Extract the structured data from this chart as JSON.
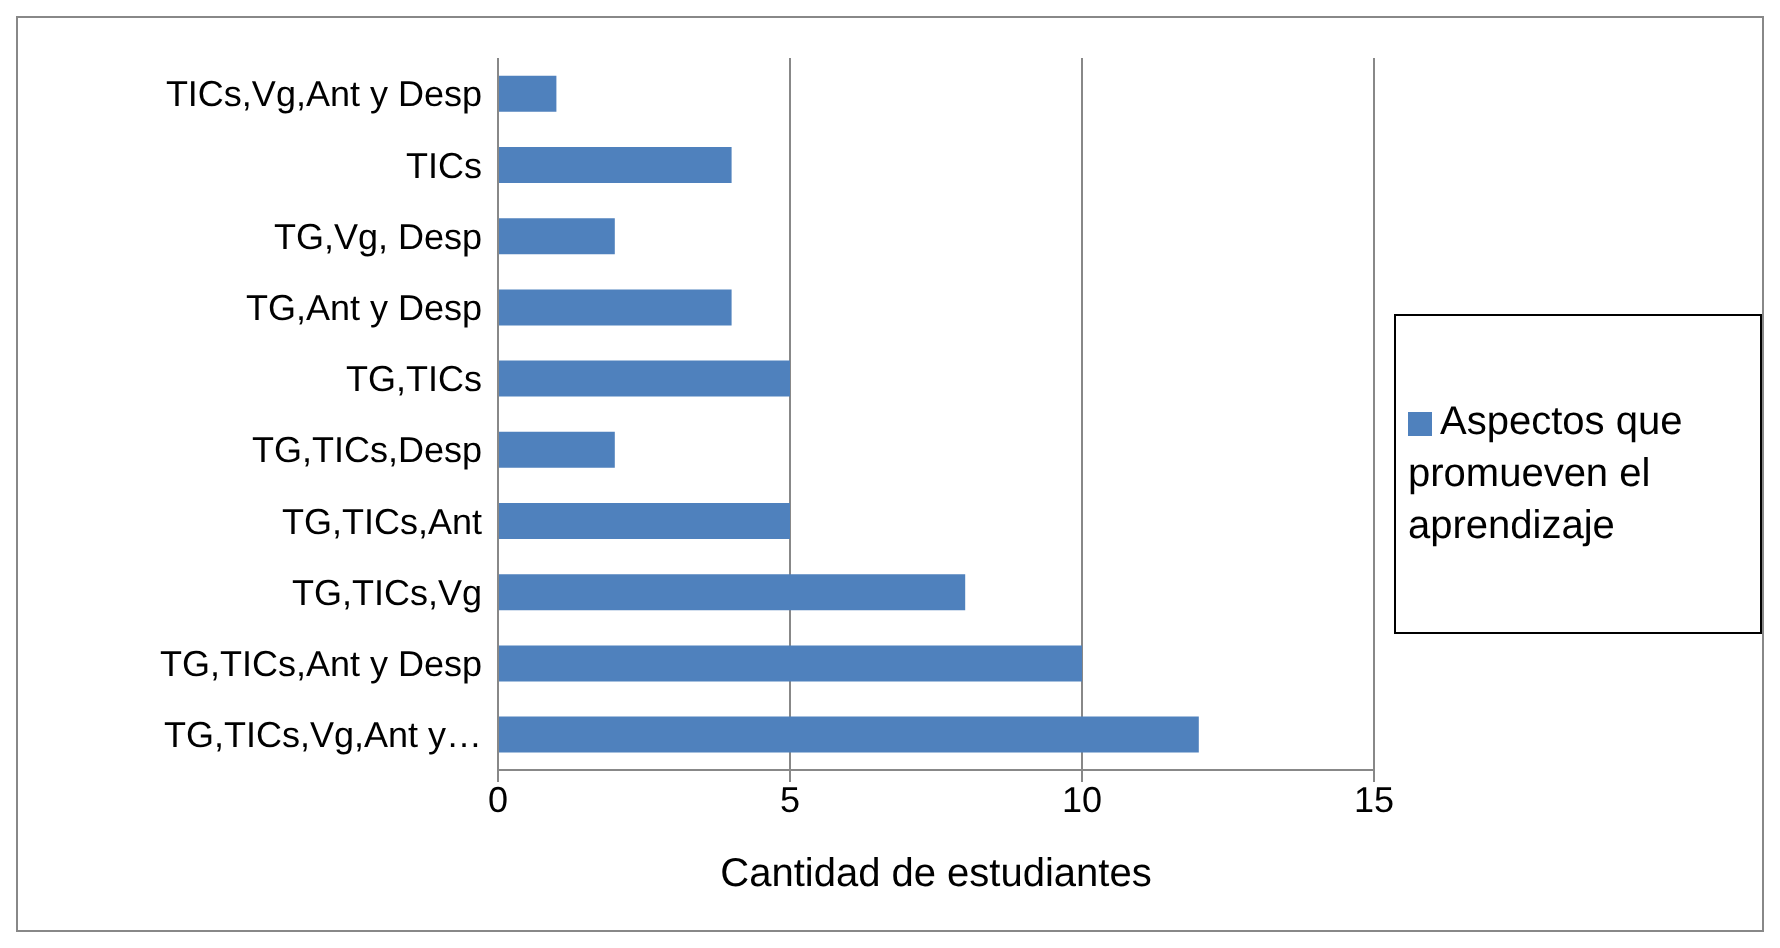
{
  "chart_data": {
    "type": "bar",
    "orientation": "horizontal",
    "categories": [
      "TICs,Vg,Ant y Desp",
      "TICs",
      "TG,Vg, Desp",
      "TG,Ant y Desp",
      "TG,TICs",
      "TG,TICs,Desp",
      "TG,TICs,Ant",
      "TG,TICs,Vg",
      "TG,TICs,Ant y Desp",
      "TG,TICs,Vg,Ant y…"
    ],
    "series": [
      {
        "name": "Aspectos que promueven el aprendizaje",
        "color": "#4f81bd",
        "values": [
          1,
          4,
          2,
          4,
          5,
          2,
          5,
          8,
          10,
          12
        ]
      }
    ],
    "xlabel": "Cantidad de estudiantes",
    "xlim": [
      0,
      15
    ],
    "xticks": [
      0,
      5,
      10,
      15
    ],
    "grid": "x",
    "legend": "right"
  }
}
